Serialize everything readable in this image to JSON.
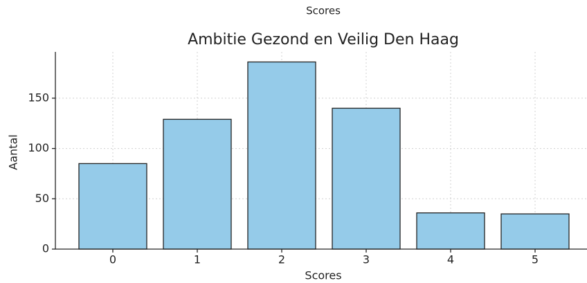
{
  "cropped_label": "Scores",
  "chart_data": {
    "type": "bar",
    "title": "Ambitie Gezond en Veilig Den Haag",
    "x_label": "Scores",
    "y_label": "Aantal",
    "categories": [
      "0",
      "1",
      "2",
      "3",
      "4",
      "5"
    ],
    "values": [
      85,
      129,
      186,
      140,
      36,
      35
    ],
    "color": "#95cbe9",
    "edgecolor": "#222222",
    "ylim": [
      0,
      196
    ],
    "yticks": [
      0,
      50,
      100,
      150
    ],
    "grid": true
  }
}
